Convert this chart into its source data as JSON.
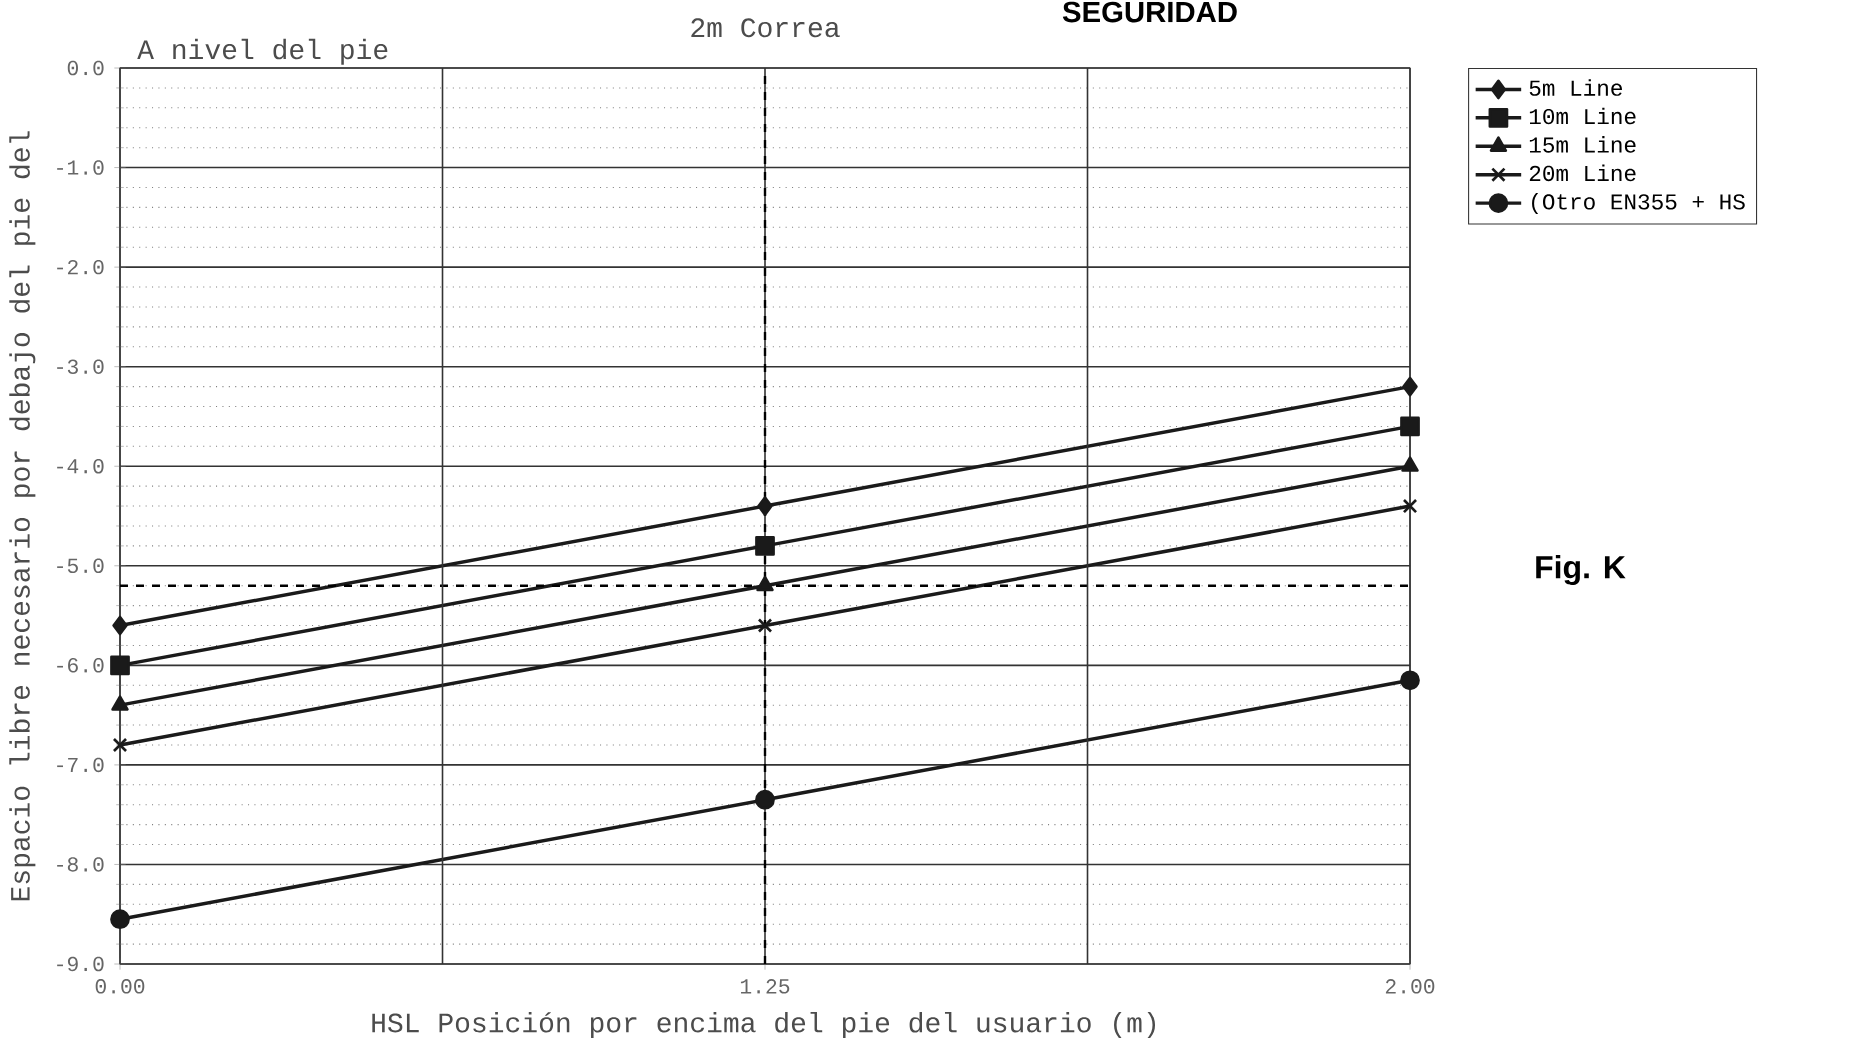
{
  "chart_data": {
    "type": "line",
    "title": "2m Correa",
    "xlabel": "HSL Posición por encima del pie del usuario (m)",
    "ylabel": "Espacio libre necesario por debajo del pie del",
    "categories": [
      "0.00",
      "1.25",
      "2.00"
    ],
    "series": [
      {
        "name": "5m Line",
        "color": "#1a1a1a",
        "marker": "diamond",
        "values": [
          -5.6,
          -4.4,
          -3.2
        ]
      },
      {
        "name": "10m Line",
        "color": "#1a1a1a",
        "marker": "square",
        "values": [
          -6.0,
          -4.8,
          -3.6
        ]
      },
      {
        "name": "15m Line",
        "color": "#1a1a1a",
        "marker": "triangle",
        "values": [
          -6.4,
          -5.2,
          -4.0
        ]
      },
      {
        "name": "20m Line",
        "color": "#1a1a1a",
        "marker": "cross",
        "values": [
          -6.8,
          -5.6,
          -4.4
        ]
      },
      {
        "name": "(Otro EN355 + HS",
        "color": "#1a1a1a",
        "marker": "circle",
        "values": [
          -8.55,
          -7.35,
          -6.15
        ]
      }
    ],
    "ylim": [
      -9,
      0
    ],
    "yticks": [
      {
        "value": 0,
        "label": "0.0"
      },
      {
        "value": -1,
        "label": "-1.0"
      },
      {
        "value": -2,
        "label": "-2.0"
      },
      {
        "value": -3,
        "label": "-3.0"
      },
      {
        "value": -4,
        "label": "-4.0"
      },
      {
        "value": -5,
        "label": "-5.0"
      },
      {
        "value": -6,
        "label": "-6.0"
      },
      {
        "value": -7,
        "label": "-7.0"
      },
      {
        "value": -8,
        "label": "-8.0"
      },
      {
        "value": -9,
        "label": "-9.0"
      }
    ],
    "ref_lines": [
      {
        "axis": "y",
        "value": -5.2,
        "line_style": "dashed",
        "color": "#000000"
      },
      {
        "axis": "x",
        "value": "1.25",
        "line_style": "dashed",
        "color": "#000000"
      }
    ],
    "annotations": [
      "SEGURIDAD",
      "A nivel del pie",
      "Fig. K"
    ],
    "grid": true,
    "legend": "top right",
    "line_style": "solid"
  }
}
